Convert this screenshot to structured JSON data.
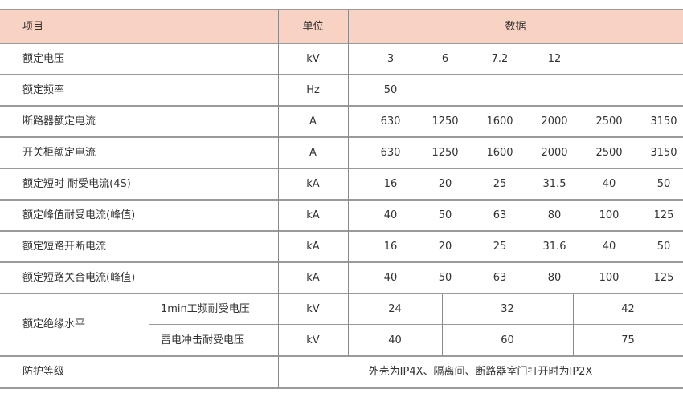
{
  "header": {
    "item": "项目",
    "unit": "单位",
    "data": "数据"
  },
  "rows": [
    {
      "item": "额定电压",
      "unit": "kV",
      "values": [
        "3",
        "6",
        "7.2",
        "12",
        "",
        ""
      ]
    },
    {
      "item": "额定频率",
      "unit": "Hz",
      "values": [
        "50",
        "",
        "",
        "",
        "",
        ""
      ]
    },
    {
      "item": "断路器额定电流",
      "unit": "A",
      "values": [
        "630",
        "1250",
        "1600",
        "2000",
        "2500",
        "3150"
      ]
    },
    {
      "item": "开关柜额定电流",
      "unit": "A",
      "values": [
        "630",
        "1250",
        "1600",
        "2000",
        "2500",
        "3150"
      ]
    },
    {
      "item": "额定短时 耐受电流(4S)",
      "unit": "kA",
      "values": [
        "16",
        "20",
        "25",
        "31.5",
        "40",
        "50"
      ]
    },
    {
      "item": "额定峰值耐受电流(峰值)",
      "unit": "kA",
      "values": [
        "40",
        "50",
        "63",
        "80",
        "100",
        "125"
      ]
    },
    {
      "item": "额定短路开断电流",
      "unit": "kA",
      "values": [
        "16",
        "20",
        "25",
        "31.6",
        "40",
        "50"
      ]
    },
    {
      "item": "额定短路关合电流(峰值)",
      "unit": "kA",
      "values": [
        "40",
        "50",
        "63",
        "80",
        "100",
        "125"
      ]
    }
  ],
  "insulation": {
    "item": "额定绝缘水平",
    "sub": [
      {
        "label": "1min工频耐受电压",
        "unit": "kV",
        "values": [
          "24",
          "32",
          "42"
        ]
      },
      {
        "label": "雷电冲击耐受电压",
        "unit": "kV",
        "values": [
          "40",
          "60",
          "75"
        ]
      }
    ]
  },
  "protection": {
    "item": "防护等级",
    "value": "外壳为IP4X、隔离间、断路器室门打开时为IP2X"
  },
  "colors": {
    "header_bg": "#f8d3c4"
  }
}
